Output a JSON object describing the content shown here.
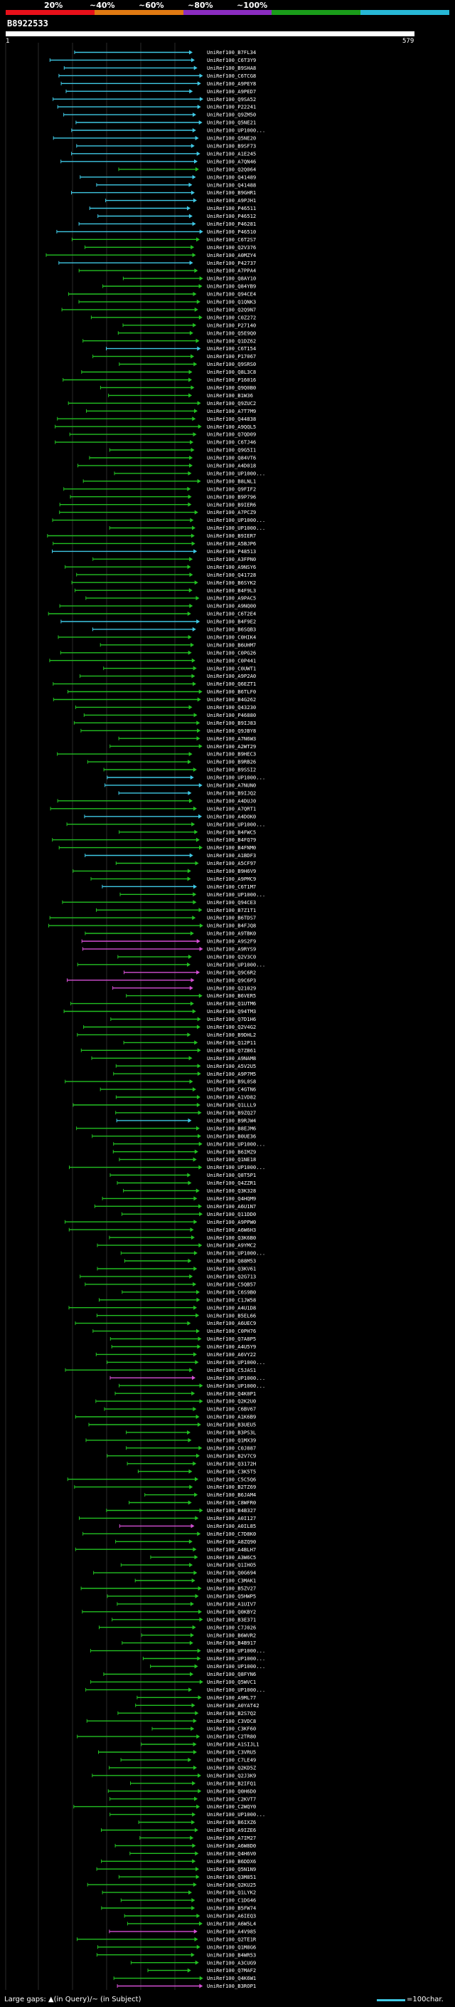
{
  "header": {
    "query_id": "B8922533",
    "start_label": "1",
    "end_label": "579",
    "percent_labels": [
      "20%",
      "~40%",
      "~60%",
      "~80%",
      "~100%"
    ],
    "band_colors": [
      "#e8101a",
      "#e07a12",
      "#8a2cc0",
      "#1a9c1a",
      "#27b7d6"
    ]
  },
  "query_length": 579,
  "hits": {
    "names": [
      "UniRef100_B7FL34",
      "UniRef100_C6T3Y9",
      "UniRef100_B9SHA8",
      "UniRef100_C6TCG8",
      "UniRef100_A9PEY8",
      "UniRef100_A9PED7",
      "UniRef100_Q9SA52",
      "UniRef100_P22241",
      "UniRef100_Q9ZM50",
      "UniRef100_Q5NE21",
      "UniRef100_UP1000...",
      "UniRef100_Q5NE20",
      "UniRef100_B9SF73",
      "UniRef100_A1E245",
      "UniRef100_A7QN46",
      "UniRef100_Q2Q064",
      "UniRef100_Q41489",
      "UniRef100_Q41488",
      "UniRef100_B9GHR1",
      "UniRef100_A9PJH1",
      "UniRef100_P46511",
      "UniRef100_P46512",
      "UniRef100_P46281",
      "UniRef100_P46510",
      "UniRef100_C6T2S7",
      "UniRef100_Q2V376",
      "UniRef100_A0MZY4",
      "UniRef100_P42737",
      "UniRef100_A7PPA4",
      "UniRef100_Q8AY10",
      "UniRef100_Q84YB9",
      "UniRef100_Q94CE4",
      "UniRef100_Q1QNK3",
      "UniRef100_Q2Q9N7",
      "UniRef100_C0Z272",
      "UniRef100_P27140",
      "UniRef100_Q5E9Q0",
      "UniRef100_Q1DZ62",
      "UniRef100_C6T154",
      "UniRef100_P17067",
      "UniRef100_Q9SRS0",
      "UniRef100_Q8L3C8",
      "UniRef100_P16016",
      "UniRef100_Q9Q0B0",
      "UniRef100_B1W36",
      "UniRef100_Q9ZUC2",
      "UniRef100_A7T7M9",
      "UniRef100_Q44838",
      "UniRef100_A9QQL5",
      "UniRef100_Q7QD09",
      "UniRef100_C6TJ46",
      "UniRef100_Q9G5I1",
      "UniRef100_Q84VT6",
      "UniRef100_A4D018",
      "UniRef100_UP1000...",
      "UniRef100_B8LNL1",
      "UniRef100_Q9FIF2",
      "UniRef100_B9P796",
      "UniRef100_B9IER6",
      "UniRef100_A7PCZ9",
      "UniRef100_UP1000...",
      "UniRef100_UP1000...",
      "UniRef100_B9IER7",
      "UniRef100_A5BJP6",
      "UniRef100_P48513",
      "UniRef100_A3FPN0",
      "UniRef100_A9NSY6",
      "UniRef100_Q41728",
      "UniRef100_B6SYK2",
      "UniRef100_B4F9L3",
      "UniRef100_A9PAC5",
      "UniRef100_A9NQ00",
      "UniRef100_C6T2E4",
      "UniRef100_B4F9E2",
      "UniRef100_B6SQB3",
      "UniRef100_C0HIK4",
      "UniRef100_B6UHM7",
      "UniRef100_C0PG26",
      "UniRef100_C0P441",
      "UniRef100_C0UWT1",
      "UniRef100_A9P2A0",
      "UniRef100_Q6EZT1",
      "UniRef100_B6TLF0",
      "UniRef100_B4G262",
      "UniRef100_Q43230",
      "UniRef100_P46880",
      "UniRef100_B9IJ83",
      "UniRef100_Q9JBY8",
      "UniRef100_A7N6W3",
      "UniRef100_A2WT29",
      "UniRef100_B9HEC3",
      "UniRef100_B9RB26",
      "UniRef100_B9SSI2",
      "UniRef100_UP1000...",
      "UniRef100_A7NUN0",
      "UniRef100_B9IJQ2",
      "UniRef100_A4DUJ0",
      "UniRef100_A7QRT1",
      "UniRef100_A4DOK0",
      "UniRef100_UP1000...",
      "UniRef100_B4FWC5",
      "UniRef100_B4FQ79",
      "UniRef100_B4FNM0",
      "UniRef100_A1BDF3",
      "UniRef100_A5CF97",
      "UniRef100_B9H6V9",
      "UniRef100_A9PMC9",
      "UniRef100_C6T1M7",
      "UniRef100_UP1000...",
      "UniRef100_Q94CE3",
      "UniRef100_B7Z1T1",
      "UniRef100_B6TDS7",
      "UniRef100_B4FJQ8",
      "UniRef100_A9TBK0",
      "UniRef100_A9S2F9",
      "UniRef100_A9RYS9",
      "UniRef100_Q2V3C0",
      "UniRef100_UP1000...",
      "UniRef100_Q9C6R2",
      "UniRef100_Q9C6P3",
      "UniRef100_Q21029",
      "UniRef100_B6VER5",
      "UniRef100_Q1UTM6",
      "UniRef100_Q94TM3",
      "UniRef100_Q7D1H6",
      "UniRef100_Q2V4G2",
      "UniRef100_B9DHL2",
      "UniRef100_Q12P11",
      "UniRef100_Q7ZB61",
      "UniRef100_A9NAM8",
      "UniRef100_A5V2U5",
      "UniRef100_A9P7M5",
      "UniRef100_B9L0S8",
      "UniRef100_C4GTN6",
      "UniRef100_A1VD82",
      "UniRef100_Q1LLL9",
      "UniRef100_B9ZQ27",
      "UniRef100_B9RJW4",
      "UniRef100_B8EJM6",
      "UniRef100_B0UE36",
      "UniRef100_UP1000...",
      "UniRef100_B6IMZ9",
      "UniRef100_Q1NE18",
      "UniRef100_UP1000...",
      "UniRef100_Q8T5P1",
      "UniRef100_Q4ZZR1",
      "UniRef100_Q3K328",
      "UniRef100_Q4HQM9",
      "UniRef100_A6U1N7",
      "UniRef100_Q11DD0",
      "UniRef100_A9PPW0",
      "UniRef100_A6W6H3",
      "UniRef100_Q3K6B0",
      "UniRef100_A9YMC2",
      "UniRef100_UP1000...",
      "UniRef100_Q88M53",
      "UniRef100_Q3KV61",
      "UniRef100_Q2G713",
      "UniRef100_C5QB57",
      "UniRef100_C6S9B0",
      "UniRef100_C1JW58",
      "UniRef100_A4U1D8",
      "UniRef100_B5EL66",
      "UniRef100_A6UEC9",
      "UniRef100_C0PH76",
      "UniRef100_Q7A8P5",
      "UniRef100_A4U5Y9",
      "UniRef100_A6VY22",
      "UniRef100_UP1000...",
      "UniRef100_C5JAS1",
      "UniRef100_UP1000...",
      "UniRef100_UP1000...",
      "UniRef100_Q4K0P1",
      "UniRef100_Q2K2U0",
      "UniRef100_C6BV67",
      "UniRef100_A1K6B9",
      "UniRef100_B3UEU5",
      "UniRef100_B3PS3L",
      "UniRef100_Q1MX39",
      "UniRef100_C0J887",
      "UniRef100_B2V7C9",
      "UniRef100_Q3172H",
      "UniRef100_C3K5T5",
      "UniRef100_C5C5Q6",
      "UniRef100_B2TZ69",
      "UniRef100_B6JAM4",
      "UniRef100_C8WFR0",
      "UniRef100_B4B327",
      "UniRef100_A0I127",
      "UniRef100_A0IL85",
      "UniRef100_C7D8K0",
      "UniRef100_A8ZQ90",
      "UniRef100_A4BLH7",
      "UniRef100_A3W6C5",
      "UniRef100_Q1IHO5",
      "UniRef100_Q0G694",
      "UniRef100_C3MAK1",
      "UniRef100_B5ZV27",
      "UniRef100_Q5HWP5",
      "UniRef100_A1UIV7",
      "UniRef100_Q0KBY2",
      "UniRef100_B3E371",
      "UniRef100_C7J026",
      "UniRef100_B6WVR2",
      "UniRef100_B4B917",
      "UniRef100_UP1000...",
      "UniRef100_UP1000...",
      "UniRef100_UP1000...",
      "UniRef100_Q8FYN6",
      "UniRef100_Q5WVC1",
      "UniRef100_UP1000...",
      "UniRef100_A9ML77",
      "UniRef100_A0YAT42",
      "UniRef100_B2S7Q2",
      "UniRef100_C3VDC8",
      "UniRef100_C3KF60",
      "UniRef100_C2TR80",
      "UniRef100_A1SIJL1",
      "UniRef100_C3VRU5",
      "UniRef100_C7LE49",
      "UniRef100_Q2KD5Z",
      "UniRef100_Q2J3K9",
      "UniRef100_B2IFQ1",
      "UniRef100_Q0H6D0",
      "UniRef100_C2KVT7",
      "UniRef100_C2WQY0",
      "UniRef100_UP1000...",
      "UniRef100_B6IXZ6",
      "UniRef100_A9IZE6",
      "UniRef100_A7IM27",
      "UniRef100_A6W8D0",
      "UniRef100_Q4H6V0",
      "UniRef100_B6DDX6",
      "UniRef100_Q5N1N9",
      "UniRef100_Q3M851",
      "UniRef100_Q2KU25",
      "UniRef100_Q1LYK2",
      "UniRef100_C1DG46",
      "UniRef100_B5FW74",
      "UniRef100_A6IEQ3",
      "UniRef100_A6W5L4",
      "UniRef100_A4V985",
      "UniRef100_Q2TE1R",
      "UniRef100_Q1M8G6",
      "UniRef100_B4WR53",
      "UniRef100_A3CUG9",
      "UniRef100_Q7MAF2",
      "UniRef100_Q4K6W1",
      "UniRef100_B3ROP1"
    ],
    "colors": [
      "#3fc8e4",
      "#3fc8e4",
      "#3fc8e4",
      "#3fc8e4",
      "#3fc8e4",
      "#3fc8e4",
      "#3fc8e4",
      "#3fc8e4",
      "#3fc8e4",
      "#3fc8e4",
      "#3fc8e4",
      "#3fc8e4",
      "#3fc8e4",
      "#3fc8e4",
      "#3fc8e4",
      "#22c022",
      "#3fc8e4",
      "#3fc8e4",
      "#3fc8e4",
      "#3fc8e4",
      "#3fc8e4",
      "#3fc8e4",
      "#3fc8e4",
      "#3fc8e4",
      "#22c022",
      "#22c022",
      "#22c022",
      "#3fc8e4",
      "#22c022",
      "#22c022",
      "#22c022",
      "#22c022",
      "#22c022",
      "#22c022",
      "#22c022",
      "#22c022",
      "#22c022",
      "#22c022",
      "#3fc8e4",
      "#22c022",
      "#22c022",
      "#22c022",
      "#22c022",
      "#22c022",
      "#22c022",
      "#22c022",
      "#22c022",
      "#22c022",
      "#22c022",
      "#22c022",
      "#22c022",
      "#22c022",
      "#22c022",
      "#22c022",
      "#22c022",
      "#22c022",
      "#22c022",
      "#22c022",
      "#22c022",
      "#22c022",
      "#22c022",
      "#22c022",
      "#22c022",
      "#22c022",
      "#3fc8e4",
      "#22c022",
      "#22c022",
      "#22c022",
      "#22c022",
      "#22c022",
      "#22c022",
      "#22c022",
      "#22c022",
      "#3fc8e4",
      "#3fc8e4",
      "#22c022",
      "#22c022",
      "#22c022",
      "#22c022",
      "#22c022",
      "#22c022",
      "#22c022",
      "#22c022",
      "#22c022",
      "#22c022",
      "#22c022",
      "#22c022",
      "#22c022",
      "#22c022",
      "#22c022",
      "#22c022",
      "#22c022",
      "#22c022",
      "#3fc8e4",
      "#3fc8e4",
      "#3fc8e4",
      "#22c022",
      "#22c022",
      "#3fc8e4",
      "#22c022",
      "#22c022",
      "#22c022",
      "#22c022",
      "#3fc8e4",
      "#22c022",
      "#22c022",
      "#22c022",
      "#3fc8e4",
      "#22c022",
      "#22c022",
      "#22c022",
      "#22c022",
      "#22c022",
      "#22c022",
      "#d44fd4",
      "#d44fd4",
      "#22c022",
      "#22c022",
      "#d44fd4",
      "#d44fd4",
      "#d44fd4",
      "#22c022",
      "#22c022",
      "#22c022",
      "#22c022",
      "#22c022",
      "#22c022",
      "#22c022",
      "#22c022",
      "#22c022",
      "#22c022",
      "#22c022",
      "#22c022",
      "#22c022",
      "#22c022",
      "#22c022",
      "#22c022",
      "#3fc8e4",
      "#22c022",
      "#22c022",
      "#22c022",
      "#22c022",
      "#22c022",
      "#22c022",
      "#22c022",
      "#22c022",
      "#22c022",
      "#22c022",
      "#22c022",
      "#22c022",
      "#22c022",
      "#22c022",
      "#22c022",
      "#22c022",
      "#22c022",
      "#22c022",
      "#22c022",
      "#22c022",
      "#22c022",
      "#22c022",
      "#22c022",
      "#22c022",
      "#22c022",
      "#22c022",
      "#22c022",
      "#22c022",
      "#22c022",
      "#22c022",
      "#22c022",
      "#22c022",
      "#d44fd4",
      "#22c022",
      "#22c022",
      "#22c022",
      "#22c022",
      "#22c022",
      "#22c022",
      "#22c022",
      "#22c022",
      "#22c022",
      "#22c022",
      "#22c022",
      "#22c022",
      "#22c022",
      "#22c022",
      "#22c022",
      "#22c022",
      "#22c022",
      "#22c022",
      "#d44fd4",
      "#22c022",
      "#22c022",
      "#22c022",
      "#22c022",
      "#22c022",
      "#22c022",
      "#22c022",
      "#22c022",
      "#22c022",
      "#22c022",
      "#22c022",
      "#22c022",
      "#22c022",
      "#22c022",
      "#22c022",
      "#22c022",
      "#22c022",
      "#22c022",
      "#22c022",
      "#22c022",
      "#22c022",
      "#22c022",
      "#22c022",
      "#22c022",
      "#22c022",
      "#22c022",
      "#22c022",
      "#22c022",
      "#22c022",
      "#22c022",
      "#22c022",
      "#22c022",
      "#22c022",
      "#22c022",
      "#22c022",
      "#22c022",
      "#22c022",
      "#22c022",
      "#22c022",
      "#22c022",
      "#22c022",
      "#22c022",
      "#22c022",
      "#22c022",
      "#22c022",
      "#22c022",
      "#22c022",
      "#22c022",
      "#22c022",
      "#22c022",
      "#22c022",
      "#d44fd4",
      "#22c022",
      "#22c022",
      "#22c022",
      "#22c022",
      "#22c022",
      "#22c022",
      "#d44fd4",
      "#d44fd4",
      "#22c022",
      "#22c022"
    ]
  },
  "footer": {
    "text": "Large gaps: ▲(in Query)/~ (in Subject)",
    "legend": "=100char."
  }
}
